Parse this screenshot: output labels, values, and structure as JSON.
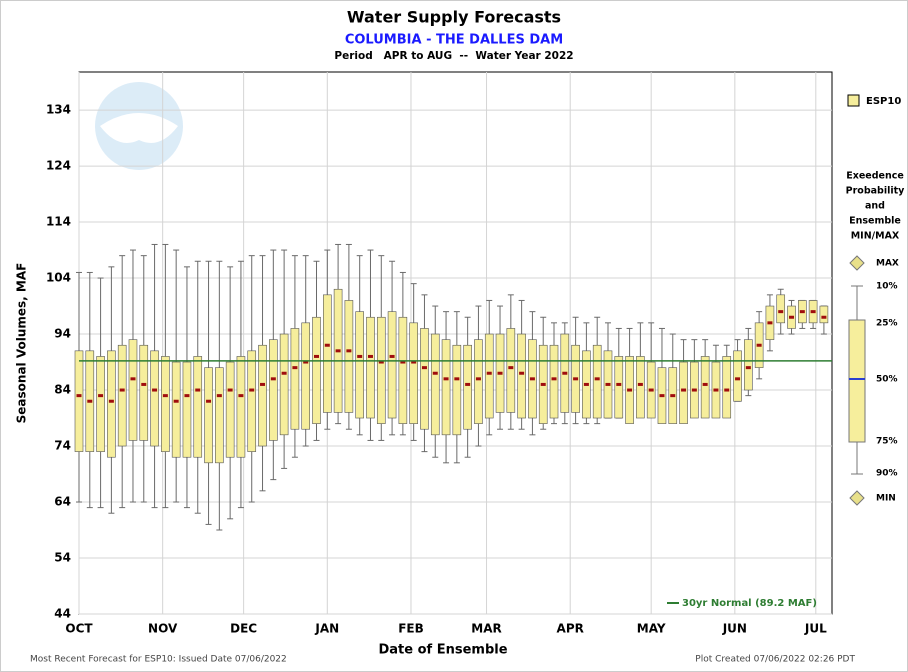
{
  "chart_data": {
    "type": "box",
    "title": "Water Supply Forecasts",
    "subtitle": "COLUMBIA - THE DALLES DAM",
    "period": "Period   APR to AUG  --  Water Year 2022",
    "y_label": "Seasonal Volumes, MAF",
    "x_label": "Date of Ensemble",
    "footer_left": "Most Recent Forecast for ESP10: Issued Date 07/06/2022",
    "footer_right": "Plot Created 07/06/2022 02:26 PDT",
    "box_name": "ESP10",
    "box_color": "#f6ee9c",
    "median_color": "#a00d0d",
    "whisker_color": "#6a6a6a",
    "legend_title": [
      "Exeedence",
      "Probability",
      "and",
      "Ensemble",
      "MIN/MAX"
    ],
    "legend_max": "MAX",
    "legend_min": "MIN",
    "normal": {
      "value": 89.2,
      "label": "30yr Normal (89.2 MAF)",
      "color": "#2e7d32"
    },
    "grid": true,
    "xlim": [
      0,
      279
    ],
    "ylim": [
      44,
      140.8
    ],
    "yticks": [
      44,
      54,
      64,
      74,
      84,
      94,
      104,
      114,
      124,
      134
    ],
    "xticks": [
      {
        "value": 0,
        "label": "OCT"
      },
      {
        "value": 31,
        "label": "NOV"
      },
      {
        "value": 61,
        "label": "DEC"
      },
      {
        "value": 92,
        "label": "JAN"
      },
      {
        "value": 123,
        "label": "FEB"
      },
      {
        "value": 151,
        "label": "MAR"
      },
      {
        "value": 182,
        "label": "APR"
      },
      {
        "value": 212,
        "label": "MAY"
      },
      {
        "value": 243,
        "label": "JUN"
      },
      {
        "value": 273,
        "label": "JUL"
      }
    ],
    "x": [
      0,
      4,
      8,
      12,
      16,
      20,
      24,
      28,
      32,
      36,
      40,
      44,
      48,
      52,
      56,
      60,
      64,
      68,
      72,
      76,
      80,
      84,
      88,
      92,
      96,
      100,
      104,
      108,
      112,
      116,
      120,
      124,
      128,
      132,
      136,
      140,
      144,
      148,
      152,
      156,
      160,
      164,
      168,
      172,
      176,
      180,
      184,
      188,
      192,
      196,
      200,
      204,
      208,
      212,
      216,
      220,
      224,
      228,
      232,
      236,
      240,
      244,
      248,
      252,
      256,
      260,
      264,
      268,
      272,
      276
    ],
    "series": [
      {
        "name": "10%",
        "values": [
          105,
          105,
          104,
          106,
          108,
          109,
          108,
          110,
          110,
          109,
          106,
          107,
          107,
          107,
          106,
          107,
          108,
          108,
          109,
          109,
          108,
          108,
          107,
          109,
          110,
          110,
          108,
          109,
          108,
          107,
          105,
          103,
          101,
          99,
          98,
          98,
          97,
          99,
          100,
          99,
          101,
          100,
          98,
          97,
          96,
          96,
          97,
          96,
          97,
          96,
          95,
          95,
          96,
          96,
          95,
          94,
          93,
          93,
          93,
          92,
          92,
          93,
          95,
          98,
          101,
          102,
          100,
          100,
          100,
          99
        ]
      },
      {
        "name": "25%",
        "values": [
          91,
          91,
          90,
          91,
          92,
          93,
          92,
          91,
          90,
          89,
          89,
          90,
          88,
          88,
          89,
          90,
          91,
          92,
          93,
          94,
          95,
          96,
          97,
          101,
          102,
          100,
          98,
          97,
          97,
          98,
          97,
          96,
          95,
          94,
          93,
          92,
          92,
          93,
          94,
          94,
          95,
          94,
          93,
          92,
          92,
          94,
          92,
          91,
          92,
          91,
          90,
          90,
          90,
          89,
          88,
          88,
          89,
          89,
          90,
          89,
          90,
          91,
          93,
          96,
          99,
          101,
          99,
          100,
          100,
          99
        ]
      },
      {
        "name": "50%",
        "values": [
          83,
          82,
          83,
          82,
          84,
          86,
          85,
          84,
          83,
          82,
          83,
          84,
          82,
          83,
          84,
          83,
          84,
          85,
          86,
          87,
          88,
          89,
          90,
          92,
          91,
          91,
          90,
          90,
          89,
          90,
          89,
          89,
          88,
          87,
          86,
          86,
          85,
          86,
          87,
          87,
          88,
          87,
          86,
          85,
          86,
          87,
          86,
          85,
          86,
          85,
          85,
          84,
          85,
          84,
          83,
          83,
          84,
          84,
          85,
          84,
          84,
          86,
          88,
          92,
          96,
          98,
          97,
          98,
          98,
          97
        ]
      },
      {
        "name": "75%",
        "values": [
          73,
          73,
          73,
          72,
          74,
          75,
          75,
          74,
          73,
          72,
          72,
          72,
          71,
          71,
          72,
          72,
          73,
          74,
          75,
          76,
          77,
          77,
          78,
          80,
          80,
          80,
          79,
          79,
          78,
          79,
          78,
          78,
          77,
          76,
          76,
          76,
          77,
          78,
          79,
          80,
          80,
          79,
          79,
          78,
          79,
          80,
          80,
          79,
          79,
          79,
          79,
          78,
          79,
          79,
          78,
          78,
          78,
          79,
          79,
          79,
          79,
          82,
          84,
          88,
          93,
          96,
          95,
          96,
          96,
          96
        ]
      },
      {
        "name": "90%",
        "values": [
          64,
          63,
          63,
          62,
          63,
          64,
          64,
          63,
          63,
          64,
          63,
          62,
          60,
          59,
          61,
          63,
          64,
          66,
          68,
          70,
          72,
          74,
          75,
          77,
          78,
          77,
          76,
          75,
          75,
          76,
          76,
          75,
          73,
          72,
          71,
          71,
          72,
          74,
          76,
          77,
          77,
          77,
          76,
          77,
          78,
          78,
          78,
          78,
          78,
          79,
          79,
          79,
          80,
          80,
          79,
          79,
          79,
          80,
          80,
          80,
          80,
          82,
          83,
          86,
          91,
          94,
          94,
          95,
          95,
          94
        ]
      }
    ]
  }
}
